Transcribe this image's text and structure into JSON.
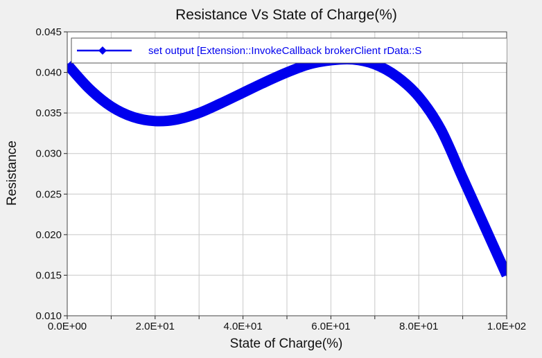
{
  "chart_data": {
    "type": "line",
    "title": "Resistance Vs State of Charge(%)",
    "xlabel": "State of Charge(%)",
    "ylabel": "Resistance",
    "xlim": [
      0,
      100
    ],
    "ylim": [
      0.01,
      0.045
    ],
    "x_ticks": [
      0,
      20,
      40,
      60,
      80,
      100
    ],
    "x_tick_labels": [
      "0.0E+00",
      "2.0E+01",
      "4.0E+01",
      "6.0E+01",
      "8.0E+01",
      "1.0E+02"
    ],
    "y_ticks": [
      0.01,
      0.015,
      0.02,
      0.025,
      0.03,
      0.035,
      0.04,
      0.045
    ],
    "y_tick_labels": [
      "0.010",
      "0.015",
      "0.020",
      "0.025",
      "0.030",
      "0.035",
      "0.040",
      "0.045"
    ],
    "grid": true,
    "legend_position": "top",
    "series": [
      {
        "name": "set output [Extension::InvokeCallback brokerClient rData::S",
        "color": "#0000ee",
        "marker": "diamond",
        "x": [
          0,
          5,
          10,
          15,
          20,
          25,
          30,
          35,
          40,
          45,
          50,
          55,
          60,
          65,
          70,
          75,
          80,
          85,
          90,
          95,
          100
        ],
        "y": [
          0.041,
          0.038,
          0.0358,
          0.0345,
          0.034,
          0.0342,
          0.035,
          0.0362,
          0.0375,
          0.0388,
          0.04,
          0.041,
          0.0415,
          0.0416,
          0.041,
          0.0395,
          0.037,
          0.033,
          0.027,
          0.021,
          0.015
        ]
      }
    ]
  }
}
